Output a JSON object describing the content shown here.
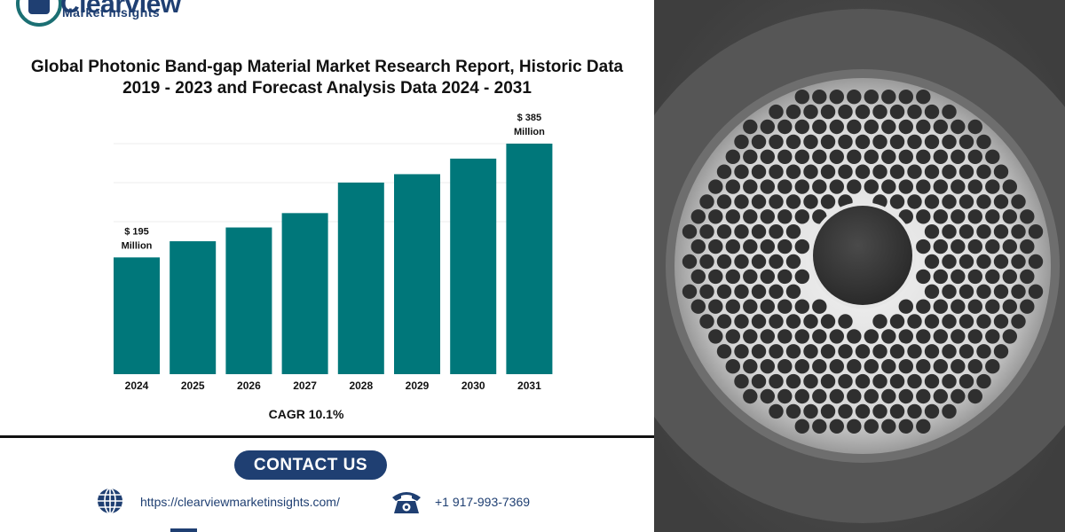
{
  "brand": {
    "name": "Clearview",
    "tagline": "Market Insights"
  },
  "report": {
    "title_line1": "Global Photonic Band-gap Material Market Research Report, Historic Data",
    "title_line2": "2019 - 2023 and Forecast Analysis Data 2024 - 2031"
  },
  "chart_data": {
    "type": "bar",
    "categories": [
      "2024",
      "2025",
      "2026",
      "2027",
      "2028",
      "2029",
      "2030",
      "2031"
    ],
    "values": [
      195,
      222,
      245,
      269,
      320,
      334,
      360,
      385
    ],
    "data_labels": [
      {
        "index": 0,
        "line1": "$ 195",
        "line2": "Million"
      },
      {
        "index": 7,
        "line1": "$ 385",
        "line2": "Million"
      }
    ],
    "ylim": [
      0,
      400
    ],
    "grid": true,
    "bar_color": "#00777a",
    "gridline_color": "#ececec",
    "caption": "CAGR 10.1%"
  },
  "contact": {
    "button_label": "CONTACT US",
    "website": "https://clearviewmarketinsights.com/",
    "phone": "+1 917-993-7369"
  },
  "icons": {
    "globe": "globe-icon",
    "phone": "telephone-icon",
    "mail": "mail-icon"
  },
  "colors": {
    "brand_blue": "#1f3f72",
    "teal": "#00777a"
  }
}
